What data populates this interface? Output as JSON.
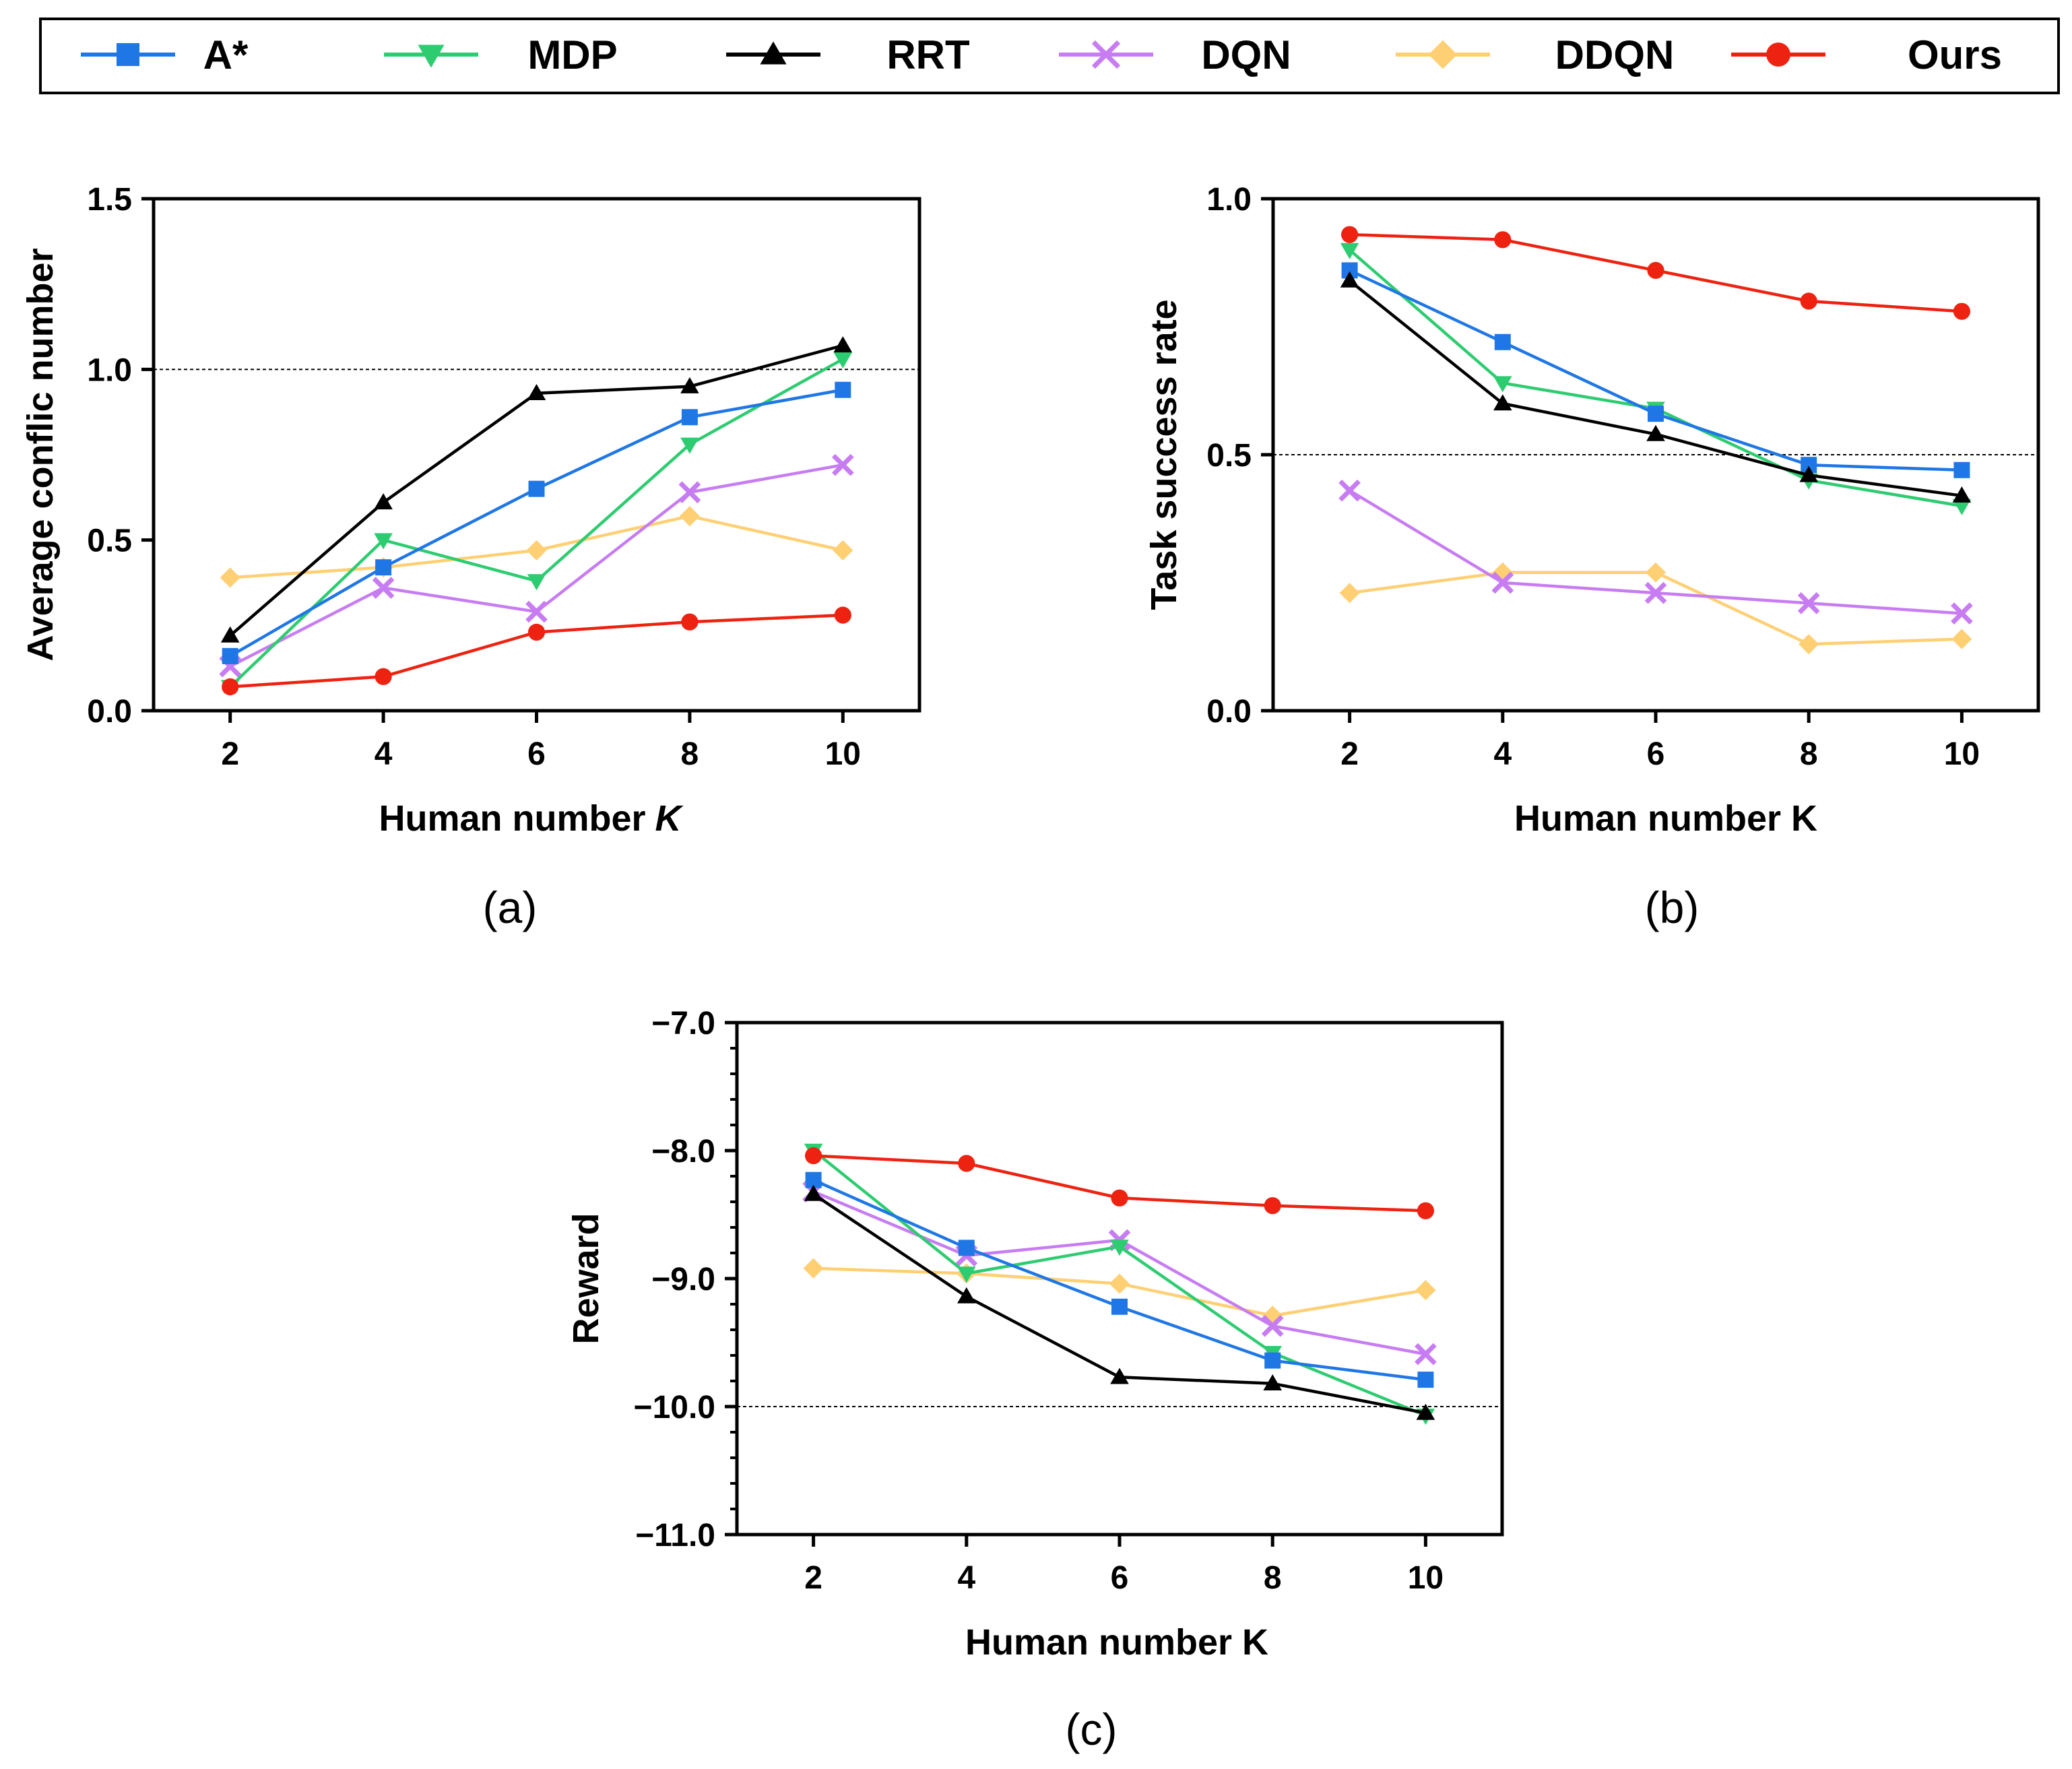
{
  "legend": [
    {
      "name": "A*",
      "color": "#1f77e6",
      "marker": "square"
    },
    {
      "name": "MDP",
      "color": "#2ecc71",
      "marker": "triangle-down"
    },
    {
      "name": "RRT",
      "color": "#000000",
      "marker": "triangle-up"
    },
    {
      "name": "DQN",
      "color": "#c77cf2",
      "marker": "x"
    },
    {
      "name": "DDQN",
      "color": "#ffcf73",
      "marker": "diamond"
    },
    {
      "name": "Ours",
      "color": "#ee2211",
      "marker": "circle"
    }
  ],
  "chart_data": [
    {
      "type": "line",
      "caption": "(a)",
      "xlabel": "Human number",
      "xlabel_italic": "K",
      "ylabel": "Average conflic number",
      "x": [
        2,
        4,
        6,
        8,
        10
      ],
      "xlim": [
        1,
        11
      ],
      "ylim": [
        0,
        1.5
      ],
      "yticks": [
        0,
        0.5,
        1.0,
        1.5
      ],
      "ytick_labels": [
        "0.0",
        "0.5",
        "1.0",
        "1.5"
      ],
      "ref_line": 1.0,
      "series": [
        {
          "name": "DDQN",
          "values": [
            0.39,
            0.42,
            0.47,
            0.57,
            0.47
          ]
        },
        {
          "name": "DQN",
          "values": [
            0.13,
            0.36,
            0.29,
            0.64,
            0.72
          ]
        },
        {
          "name": "MDP",
          "values": [
            0.07,
            0.5,
            0.38,
            0.78,
            1.03
          ]
        },
        {
          "name": "A*",
          "values": [
            0.16,
            0.42,
            0.65,
            0.86,
            0.94
          ]
        },
        {
          "name": "RRT",
          "values": [
            0.22,
            0.61,
            0.93,
            0.95,
            1.07
          ]
        },
        {
          "name": "Ours",
          "values": [
            0.07,
            0.1,
            0.23,
            0.26,
            0.28
          ]
        }
      ]
    },
    {
      "type": "line",
      "caption": "(b)",
      "xlabel": "Human number K",
      "xlabel_italic": "",
      "ylabel": "Task success rate",
      "x": [
        2,
        4,
        6,
        8,
        10
      ],
      "xlim": [
        1,
        11
      ],
      "ylim": [
        0,
        1.0
      ],
      "yticks": [
        0,
        0.5,
        1.0
      ],
      "ytick_labels": [
        "0.0",
        "0.5",
        "1.0"
      ],
      "ref_line": 0.5,
      "series": [
        {
          "name": "DDQN",
          "values": [
            0.23,
            0.27,
            0.27,
            0.13,
            0.14
          ]
        },
        {
          "name": "DQN",
          "values": [
            0.43,
            0.25,
            0.23,
            0.21,
            0.19
          ]
        },
        {
          "name": "MDP",
          "values": [
            0.9,
            0.64,
            0.59,
            0.45,
            0.4
          ]
        },
        {
          "name": "A*",
          "values": [
            0.86,
            0.72,
            0.58,
            0.48,
            0.47
          ]
        },
        {
          "name": "RRT",
          "values": [
            0.84,
            0.6,
            0.54,
            0.46,
            0.42
          ]
        },
        {
          "name": "Ours",
          "values": [
            0.93,
            0.92,
            0.86,
            0.8,
            0.78
          ]
        }
      ]
    },
    {
      "type": "line",
      "caption": "(c)",
      "xlabel": "Human number K",
      "xlabel_italic": "",
      "ylabel": "Reward",
      "x": [
        2,
        4,
        6,
        8,
        10
      ],
      "xlim": [
        1,
        11
      ],
      "ylim": [
        -11,
        -7
      ],
      "yticks": [
        -11,
        -10,
        -9,
        -8,
        -7
      ],
      "ytick_labels": [
        "−11.0",
        "−10.0",
        "−9.0",
        "−8.0",
        "−7.0"
      ],
      "ref_line": -10,
      "series": [
        {
          "name": "DDQN",
          "values": [
            -8.92,
            -8.96,
            -9.04,
            -9.29,
            -9.09
          ]
        },
        {
          "name": "DQN",
          "values": [
            -8.32,
            -8.82,
            -8.7,
            -9.37,
            -9.59
          ]
        },
        {
          "name": "MDP",
          "values": [
            -8.0,
            -8.96,
            -8.75,
            -9.58,
            -10.07
          ]
        },
        {
          "name": "A*",
          "values": [
            -8.23,
            -8.76,
            -9.22,
            -9.64,
            -9.79
          ]
        },
        {
          "name": "RRT",
          "values": [
            -8.34,
            -9.14,
            -9.77,
            -9.82,
            -10.05
          ]
        },
        {
          "name": "Ours",
          "values": [
            -8.04,
            -8.1,
            -8.37,
            -8.43,
            -8.47
          ]
        }
      ]
    }
  ]
}
